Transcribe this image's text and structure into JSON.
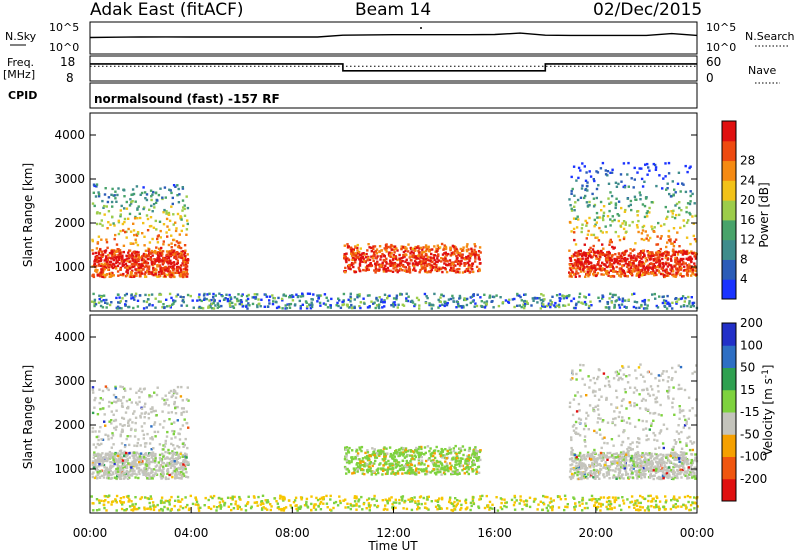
{
  "header": {
    "site": "Adak East (fitACF)",
    "beam": "Beam 14",
    "date": "02/Dec/2015"
  },
  "panel_labels": {
    "nsky": "N.Sky",
    "freq": "Freq.",
    "freq_unit": "[MHz]",
    "cpid": "CPID",
    "nsearch": "N.Search",
    "nave": "Nave",
    "nsky_top": "10^5",
    "nsky_bottom": "10^0",
    "nsearch_top": "10^5",
    "nsearch_bottom": "10^0",
    "freq_top": "18",
    "freq_bottom": "8",
    "nave_top": "60",
    "nave_bottom": "0",
    "cpid_text": "normalsound (fast) -157 RF"
  },
  "xaxis": {
    "label": "Time UT",
    "ticks": [
      "00:00",
      "04:00",
      "08:00",
      "12:00",
      "16:00",
      "20:00",
      "00:00"
    ]
  },
  "colors": {
    "power_scale": [
      "#1a33ff",
      "#2b5cb8",
      "#3f8c8c",
      "#48a36a",
      "#9ccc4a",
      "#f2c218",
      "#f58a12",
      "#ee4a10",
      "#e01010"
    ],
    "velocity_scale": [
      "#e01010",
      "#f0560f",
      "#f5a000",
      "#f7c600",
      "#c4c4bc",
      "#c4c4bc",
      "#7ed23e",
      "#2fa050",
      "#2e6fc4",
      "#2230c8"
    ]
  },
  "chart_data": [
    {
      "type": "line",
      "title": "N.Sky / N.Search",
      "x": [
        0,
        1,
        2,
        3,
        4,
        5,
        6,
        7,
        8,
        9,
        10,
        11,
        12,
        13,
        14,
        15,
        16,
        17,
        18,
        19,
        20,
        21,
        22,
        23,
        24
      ],
      "series": [
        {
          "name": "N.Sky",
          "values": [
            1200,
            1400,
            1500,
            1600,
            1500,
            1500,
            1500,
            1500,
            1500,
            1500,
            4000,
            4500,
            5000,
            5000,
            5000,
            5000,
            5500,
            12000,
            4000,
            3500,
            3500,
            3500,
            3500,
            9000,
            3500
          ]
        }
      ],
      "ylim_labels": [
        "10^0",
        "10^5"
      ]
    },
    {
      "type": "line",
      "title": "Freq. [MHz] / Nave",
      "x": [
        0,
        10,
        10,
        18,
        18,
        24
      ],
      "series": [
        {
          "name": "Freq.",
          "values": [
            15,
            15,
            12,
            12,
            15,
            15
          ]
        },
        {
          "name": "Nave",
          "values": [
            14,
            14,
            14,
            14,
            14,
            14
          ]
        }
      ],
      "ylim": [
        8,
        18
      ]
    },
    {
      "type": "heatmap",
      "title": "Power",
      "xlabel": "Time UT",
      "ylabel": "Slant Range [km]",
      "xlim": [
        "00:00",
        "00:00"
      ],
      "ylim": [
        0,
        4500
      ],
      "yticks": [
        1000,
        2000,
        3000,
        4000
      ],
      "colorbar": {
        "label": "Power [dB]",
        "ticks": [
          4,
          8,
          12,
          16,
          20,
          24,
          28
        ]
      },
      "regions": [
        {
          "time": [
            "00:00",
            "03:50"
          ],
          "range_km": [
            800,
            3000
          ],
          "peak_dB": 28
        },
        {
          "time": [
            "10:00",
            "15:30"
          ],
          "range_km": [
            900,
            1500
          ],
          "peak_dB": 24
        },
        {
          "time": [
            "18:50",
            "24:00"
          ],
          "range_km": [
            900,
            3500
          ],
          "peak_dB": 28
        }
      ]
    },
    {
      "type": "heatmap",
      "title": "Velocity",
      "xlabel": "Time UT",
      "ylabel": "Slant Range [km]",
      "ylim": [
        0,
        4500
      ],
      "yticks": [
        1000,
        2000,
        3000,
        4000
      ],
      "colorbar": {
        "label": "Velocity [m s^-1]",
        "ticks": [
          200,
          100,
          50,
          15,
          -15,
          -50,
          -100,
          -200
        ]
      },
      "regions": [
        {
          "time": [
            "00:00",
            "03:50"
          ],
          "range_km": [
            800,
            3000
          ],
          "dominant": "ground scatter"
        },
        {
          "time": [
            "10:00",
            "15:30"
          ],
          "range_km": [
            900,
            1500
          ],
          "dominant": "50"
        },
        {
          "time": [
            "18:50",
            "24:00"
          ],
          "range_km": [
            900,
            3500
          ],
          "dominant": "ground scatter"
        }
      ]
    }
  ]
}
